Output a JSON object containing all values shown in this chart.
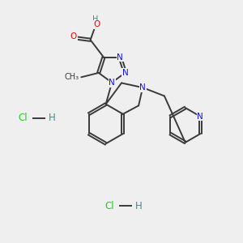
{
  "bg_color": "#efefef",
  "bond_color": "#3a3a3a",
  "bond_width": 1.4,
  "dbo": 0.055,
  "atom_colors": {
    "N": "#1010ee",
    "O": "#ee0000",
    "Cl": "#22cc22",
    "H": "#4a8888"
  },
  "fs": 7.5
}
